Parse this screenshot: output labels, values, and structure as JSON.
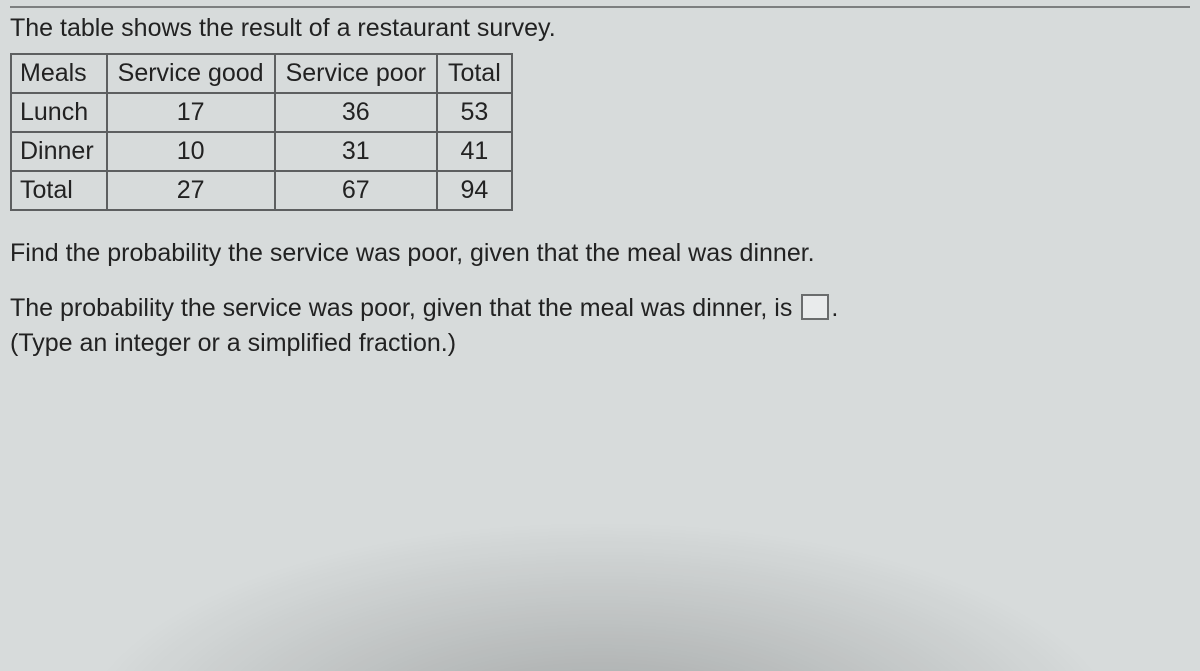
{
  "intro": "The table shows the result of a restaurant survey.",
  "table": {
    "columns": [
      "Meals",
      "Service good",
      "Service poor",
      "Total"
    ],
    "rows": [
      [
        "Lunch",
        "17",
        "36",
        "53"
      ],
      [
        "Dinner",
        "10",
        "31",
        "41"
      ],
      [
        "Total",
        "27",
        "67",
        "94"
      ]
    ],
    "border_color": "#5d5f60",
    "fontsize": 25
  },
  "question": "Find the probability the service was poor, given that the meal was dinner.",
  "answer_lead": "The probability the service was poor, given that the meal was dinner, is ",
  "answer_trail": ".",
  "hint": "(Type an integer or a simplified fraction.)",
  "colors": {
    "background": "#d7dbdb",
    "text": "#222222",
    "rule": "#7d7f80",
    "input_border": "#6a6c6d",
    "input_bg": "#e9ebec"
  }
}
